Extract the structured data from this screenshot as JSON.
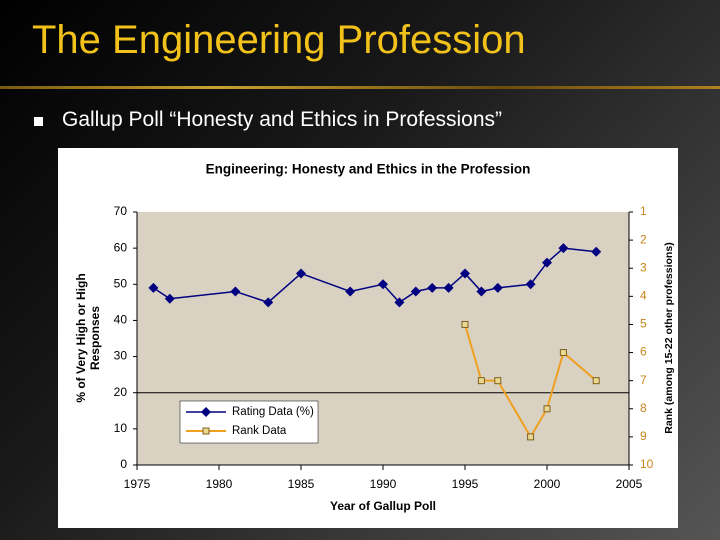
{
  "slide": {
    "title": "The Engineering Profession",
    "bullet": "Gallup Poll “Honesty and Ethics in Professions”"
  },
  "chart_data": {
    "type": "line",
    "title": "Engineering: Honesty and Ethics in the Profession",
    "x_label": "Year of Gallup Poll",
    "y_label": [
      "% of Very High or High",
      "Responses"
    ],
    "y2_label": "Rank (among 15-22 other professions)",
    "xlim": [
      1975,
      2005
    ],
    "xticks": [
      1975,
      1980,
      1985,
      1990,
      1995,
      2000,
      2005
    ],
    "ylim": [
      0,
      70
    ],
    "yticks": [
      0,
      10,
      20,
      30,
      40,
      50,
      60,
      70
    ],
    "y2lim": [
      10,
      1
    ],
    "y2ticks": [
      1,
      2,
      3,
      4,
      5,
      6,
      7,
      8,
      9,
      10
    ],
    "hline": 20,
    "legend": "lower left",
    "series": [
      {
        "name": "Rating Data (%)",
        "color": "#000080",
        "marker": "diamond",
        "x": [
          1976,
          1977,
          1981,
          1983,
          1985,
          1988,
          1990,
          1991,
          1992,
          1993,
          1994,
          1995,
          1996,
          1997,
          1999,
          2000,
          2001,
          2003
        ],
        "values": [
          49,
          46,
          48,
          45,
          53,
          48,
          50,
          45,
          48,
          49,
          49,
          53,
          48,
          49,
          50,
          56,
          60,
          59
        ]
      },
      {
        "name": "Rank Data",
        "color": "#f0a020",
        "marker": "square",
        "axis": "y2",
        "x": [
          1995,
          1996,
          1997,
          1999,
          2000,
          2001,
          2003
        ],
        "values": [
          5,
          7,
          7,
          9,
          8,
          6,
          7
        ]
      }
    ]
  }
}
